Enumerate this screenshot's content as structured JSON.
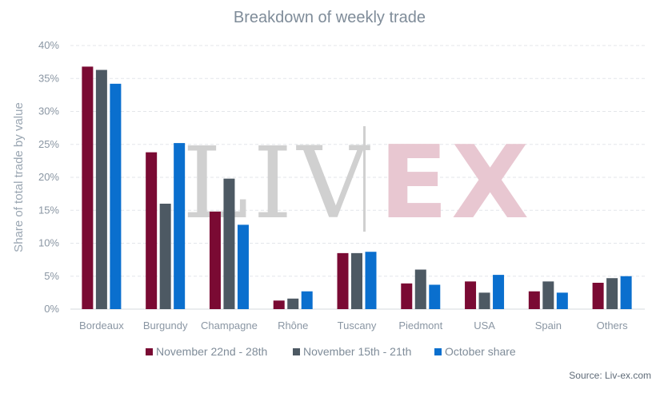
{
  "chart_data": {
    "type": "bar",
    "title": "Breakdown of weekly trade",
    "ylabel": "Share of total trade by value",
    "xlabel": "",
    "ylim": [
      0,
      40
    ],
    "yticks": [
      "0%",
      "5%",
      "10%",
      "15%",
      "20%",
      "25%",
      "30%",
      "35%",
      "40%"
    ],
    "categories": [
      "Bordeaux",
      "Burgundy",
      "Champagne",
      "Rhône",
      "Tuscany",
      "Piedmont",
      "USA",
      "Spain",
      "Others"
    ],
    "series": [
      {
        "name": "November 22nd - 28th",
        "color": "#7a0a33",
        "values": [
          36.8,
          23.8,
          14.8,
          1.3,
          8.5,
          3.9,
          4.2,
          2.7,
          4.0
        ]
      },
      {
        "name": "November 15th - 21th",
        "color": "#4d5963",
        "values": [
          36.3,
          16.0,
          19.8,
          1.6,
          8.5,
          6.0,
          2.5,
          4.2,
          4.7
        ]
      },
      {
        "name": "October share",
        "color": "#0a6fce",
        "values": [
          34.2,
          25.2,
          12.8,
          2.7,
          8.7,
          3.7,
          5.2,
          2.5,
          5.0
        ]
      }
    ],
    "grid": true,
    "legend": "bottom"
  },
  "watermark": {
    "left": "LIV",
    "right": "EX"
  },
  "source": "Source: Liv-ex.com"
}
